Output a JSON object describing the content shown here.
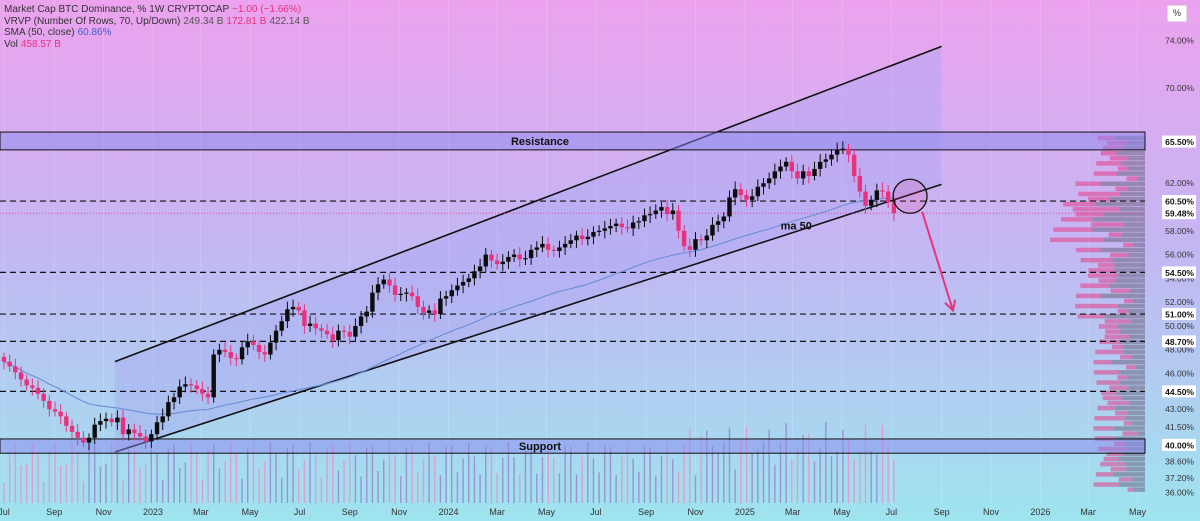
{
  "legend": {
    "main": {
      "title": "Market Cap BTC Dominance, %",
      "timeframe": "1W",
      "source": "CRYPTOCAP",
      "change": "−1.00 (−1.66%)"
    },
    "vrvp": {
      "title": "VRVP (Number Of Rows, 70, Up/Down)",
      "v1": "249.34 B",
      "v2": "172.81 B",
      "v3": "422.14 B"
    },
    "sma": {
      "title": "SMA (50, close)",
      "value": "60.86%"
    },
    "vol": {
      "title": "Vol",
      "value": "458.57 B"
    }
  },
  "corner_button": "%",
  "colors": {
    "up": "#0c0c0c",
    "down": "#e8327e",
    "sma": "#6a8ed6",
    "zone": "#8a88ee",
    "arrow": "#e8327e",
    "ylabel_bg": "#ffffff",
    "bg_top": "#eca2ee",
    "bg_bottom": "#9ee4ef"
  },
  "chart_data": {
    "type": "candlestick",
    "x_axis": {
      "ticks": [
        "Jul",
        "Sep",
        "Nov",
        "2023",
        "Mar",
        "May",
        "Jul",
        "Sep",
        "Nov",
        "2024",
        "Mar",
        "May",
        "Jul",
        "Sep",
        "Nov",
        "2025",
        "Mar",
        "May",
        "Jul",
        "Sep",
        "Nov",
        "2026",
        "Mar",
        "May"
      ],
      "start": "2022-07-01",
      "end": "2026-06-15"
    },
    "y_axis": {
      "ticks": [
        "74.00%",
        "70.00%",
        "62.00%",
        "58.00%",
        "56.00%",
        "54.00%",
        "52.00%",
        "50.00%",
        "48.00%",
        "46.00%",
        "43.00%",
        "41.50%",
        "38.60%",
        "37.20%",
        "36.00%"
      ],
      "tick_values": [
        74,
        70,
        62,
        58,
        56,
        54,
        52,
        50,
        48,
        46,
        43,
        41.5,
        38.6,
        37.2,
        36
      ],
      "range": [
        35.2,
        77.4
      ]
    },
    "levels": [
      {
        "label": "65.50%",
        "value": 65.5,
        "style": "zone"
      },
      {
        "label": "60.50%",
        "value": 60.5,
        "style": "dashed"
      },
      {
        "label": "59.48%",
        "value": 59.48,
        "style": "dotted"
      },
      {
        "label": "54.50%",
        "value": 54.5,
        "style": "dashed"
      },
      {
        "label": "51.00%",
        "value": 51.0,
        "style": "dashed"
      },
      {
        "label": "48.70%",
        "value": 48.7,
        "style": "dashed"
      },
      {
        "label": "44.50%",
        "value": 44.5,
        "style": "dashed"
      },
      {
        "label": "40.00%",
        "value": 40.0,
        "style": "zone"
      }
    ],
    "zones": [
      {
        "label": "Resistance",
        "low": 64.8,
        "high": 66.3
      },
      {
        "label": "Support",
        "low": 39.3,
        "high": 40.5
      }
    ],
    "annotations": {
      "ma_label": "ma 50"
    },
    "channel": {
      "upper": [
        {
          "date": "2022-11-15",
          "value": 47.0
        },
        {
          "date": "2025-09-01",
          "value": 73.5
        }
      ],
      "lower": [
        {
          "date": "2022-11-15",
          "value": 39.4
        },
        {
          "date": "2025-09-01",
          "value": 61.9
        }
      ]
    },
    "projection_arrow": [
      {
        "date": "2025-08-08",
        "value": 59.6
      },
      {
        "date": "2025-09-15",
        "value": 51.3
      }
    ],
    "highlight_circle": {
      "date": "2025-07-24",
      "value": 60.9
    },
    "candles": {
      "weekly_closes": [
        47.0,
        46.6,
        46.1,
        45.5,
        45.0,
        44.8,
        44.3,
        43.7,
        43.0,
        42.8,
        42.4,
        41.6,
        41.1,
        40.6,
        40.2,
        40.6,
        41.7,
        42.0,
        42.2,
        41.9,
        42.3,
        40.9,
        41.3,
        41.0,
        40.7,
        40.3,
        40.9,
        41.9,
        42.4,
        43.6,
        44.0,
        44.9,
        45.1,
        45.0,
        44.7,
        44.3,
        44.0,
        47.6,
        48.0,
        47.8,
        47.3,
        47.2,
        48.2,
        48.7,
        48.4,
        47.8,
        47.6,
        48.6,
        49.6,
        50.4,
        51.4,
        51.6,
        51.3,
        50.0,
        50.2,
        49.8,
        49.6,
        49.3,
        48.8,
        49.6,
        49.5,
        49.1,
        50.0,
        50.8,
        51.2,
        52.8,
        53.5,
        53.9,
        53.4,
        52.6,
        52.7,
        52.8,
        52.5,
        51.6,
        51.1,
        51.3,
        51.0,
        52.3,
        52.5,
        53.0,
        53.4,
        53.7,
        54.0,
        54.6,
        55.0,
        56.0,
        55.5,
        55.2,
        55.4,
        55.8,
        56.0,
        55.6,
        55.7,
        56.4,
        56.6,
        56.9,
        56.4,
        56.3,
        56.6,
        56.9,
        57.2,
        57.6,
        57.3,
        57.5,
        57.9,
        58.0,
        58.2,
        58.4,
        58.6,
        58.3,
        58.2,
        58.7,
        58.8,
        59.3,
        59.4,
        59.7,
        60.0,
        59.4,
        59.7,
        58.0,
        56.7,
        56.4,
        57.3,
        57.2,
        57.6,
        58.5,
        58.8,
        59.2,
        60.8,
        61.5,
        61.0,
        60.6,
        60.9,
        61.7,
        62.0,
        62.4,
        63.0,
        63.4,
        63.8,
        63.0,
        62.4,
        63.0,
        62.6,
        63.2,
        63.8,
        64.0,
        64.4,
        64.8,
        64.9,
        64.4,
        62.6,
        61.3,
        60.1,
        60.6,
        61.4,
        61.3,
        60.4,
        59.48
      ],
      "start_open": 47.4,
      "start_date": "2022-07-01",
      "interval_days": 7
    },
    "volume_range": [
      0,
      1600
    ],
    "volume_profile": {
      "rows": 70,
      "range": [
        36.0,
        66.0
      ]
    }
  }
}
